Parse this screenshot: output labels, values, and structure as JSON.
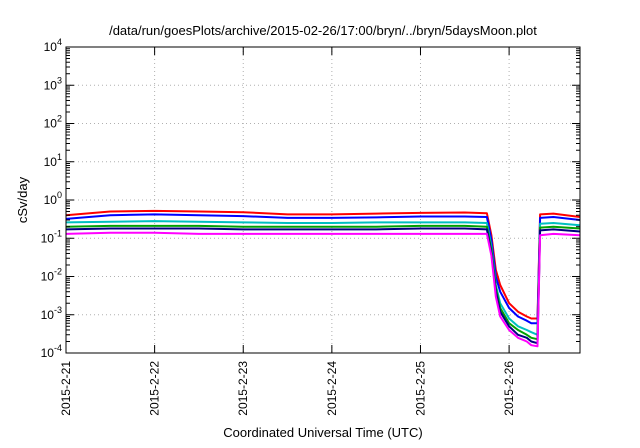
{
  "chart_data": {
    "type": "line",
    "title": "/data/run/goesPlots/archive/2015-02-26/17:00/bryn/../bryn/5daysMoon.plot",
    "xlabel": "Coordinated Universal Time (UTC)",
    "ylabel": "cSv/day",
    "y_scale": "log",
    "ylim": [
      0.0001,
      10000
    ],
    "xlim": [
      0,
      5.8
    ],
    "grid": true,
    "x_ticks": [
      {
        "x": 0,
        "label": "2015-2-21"
      },
      {
        "x": 1,
        "label": "2015-2-22"
      },
      {
        "x": 2,
        "label": "2015-2-23"
      },
      {
        "x": 3,
        "label": "2015-2-24"
      },
      {
        "x": 4,
        "label": "2015-2-25"
      },
      {
        "x": 5,
        "label": "2015-2-26"
      }
    ],
    "y_ticks": [
      {
        "value": 0.0001,
        "base": "10",
        "exp": "-4"
      },
      {
        "value": 0.001,
        "base": "10",
        "exp": "-3"
      },
      {
        "value": 0.01,
        "base": "10",
        "exp": "-2"
      },
      {
        "value": 0.1,
        "base": "10",
        "exp": "-1"
      },
      {
        "value": 1,
        "base": "10",
        "exp": "0"
      },
      {
        "value": 10,
        "base": "10",
        "exp": "1"
      },
      {
        "value": 100,
        "base": "10",
        "exp": "2"
      },
      {
        "value": 1000,
        "base": "10",
        "exp": "3"
      },
      {
        "value": 10000,
        "base": "10",
        "exp": "4"
      }
    ],
    "x": [
      0,
      0.5,
      1,
      1.5,
      2,
      2.5,
      3,
      3.5,
      4,
      4.5,
      4.75,
      4.8,
      4.85,
      4.9,
      5.0,
      5.1,
      5.2,
      5.25,
      5.32,
      5.35,
      5.5,
      5.8
    ],
    "series": [
      {
        "color": "#ff0000",
        "values": [
          0.4,
          0.5,
          0.52,
          0.5,
          0.48,
          0.42,
          0.42,
          0.44,
          0.46,
          0.47,
          0.45,
          0.12,
          0.015,
          0.006,
          0.002,
          0.0012,
          0.0009,
          0.0008,
          0.0008,
          0.42,
          0.44,
          0.36
        ]
      },
      {
        "color": "#0000ff",
        "values": [
          0.32,
          0.4,
          0.42,
          0.4,
          0.38,
          0.34,
          0.34,
          0.35,
          0.37,
          0.37,
          0.36,
          0.09,
          0.01,
          0.004,
          0.0015,
          0.0009,
          0.0007,
          0.0006,
          0.0006,
          0.34,
          0.36,
          0.3
        ]
      },
      {
        "color": "#00c0c0",
        "values": [
          0.26,
          0.27,
          0.28,
          0.27,
          0.26,
          0.25,
          0.25,
          0.26,
          0.26,
          0.26,
          0.25,
          0.06,
          0.006,
          0.002,
          0.0008,
          0.0005,
          0.0004,
          0.00035,
          0.0003,
          0.24,
          0.25,
          0.22
        ]
      },
      {
        "color": "#00a000",
        "values": [
          0.2,
          0.21,
          0.21,
          0.21,
          0.2,
          0.2,
          0.2,
          0.2,
          0.21,
          0.21,
          0.2,
          0.05,
          0.005,
          0.0015,
          0.0006,
          0.0004,
          0.0003,
          0.00025,
          0.00023,
          0.19,
          0.2,
          0.18
        ]
      },
      {
        "color": "#000080",
        "values": [
          0.17,
          0.18,
          0.18,
          0.18,
          0.17,
          0.17,
          0.17,
          0.17,
          0.18,
          0.18,
          0.17,
          0.04,
          0.004,
          0.0012,
          0.0005,
          0.0003,
          0.00025,
          0.0002,
          0.00018,
          0.16,
          0.17,
          0.15
        ]
      },
      {
        "color": "#ff00ff",
        "values": [
          0.13,
          0.14,
          0.14,
          0.13,
          0.13,
          0.13,
          0.13,
          0.13,
          0.13,
          0.13,
          0.13,
          0.035,
          0.003,
          0.0009,
          0.0004,
          0.00025,
          0.0002,
          0.00016,
          0.00015,
          0.12,
          0.13,
          0.12
        ]
      }
    ]
  }
}
